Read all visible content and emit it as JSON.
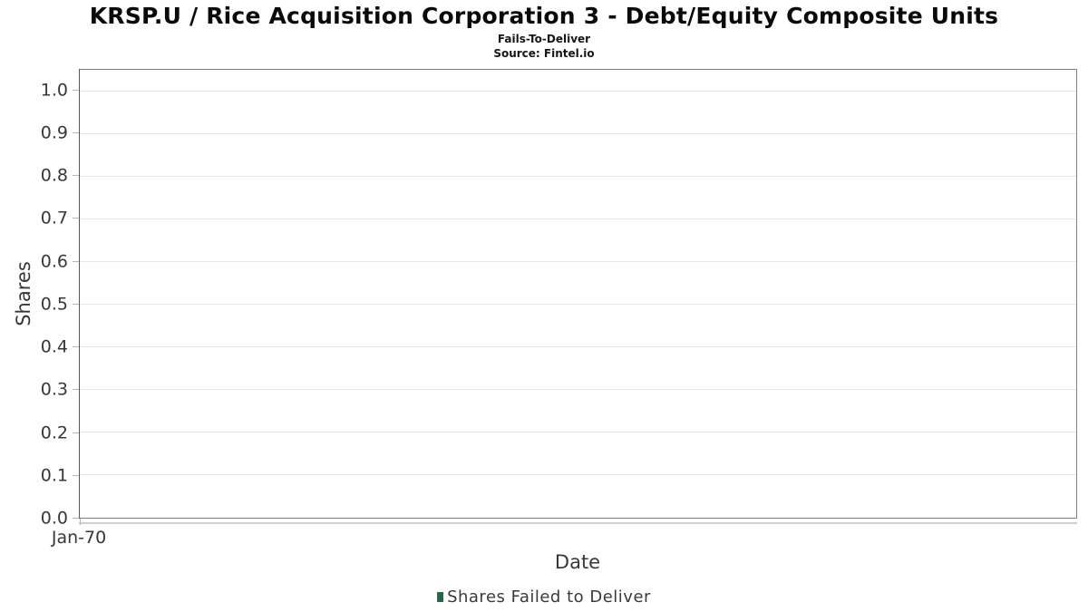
{
  "chart_data": {
    "type": "bar",
    "title": "KRSP.U / Rice Acquisition Corporation 3 - Debt/Equity Composite Units",
    "subtitle": "Fails-To-Deliver",
    "source": "Source: Fintel.io",
    "xlabel": "Date",
    "ylabel": "Shares",
    "xticks": [
      "Jan-70"
    ],
    "yticks": [
      0.0,
      0.1,
      0.2,
      0.3,
      0.4,
      0.5,
      0.6,
      0.7,
      0.8,
      0.9,
      1.0
    ],
    "ylim": [
      0,
      1.05
    ],
    "grid": "horizontal-major-only",
    "legend_position": "bottom-center",
    "legend": [
      {
        "label": "Shares Failed to Deliver",
        "color": "#276749"
      }
    ],
    "series": [
      {
        "name": "Shares Failed to Deliver",
        "x": [],
        "values": []
      }
    ],
    "colors": {
      "gridline": "#e7e7e7",
      "axis_border": "#7e7e7e",
      "tick_text": "#373737",
      "title_text": "#0a0a0a"
    }
  }
}
